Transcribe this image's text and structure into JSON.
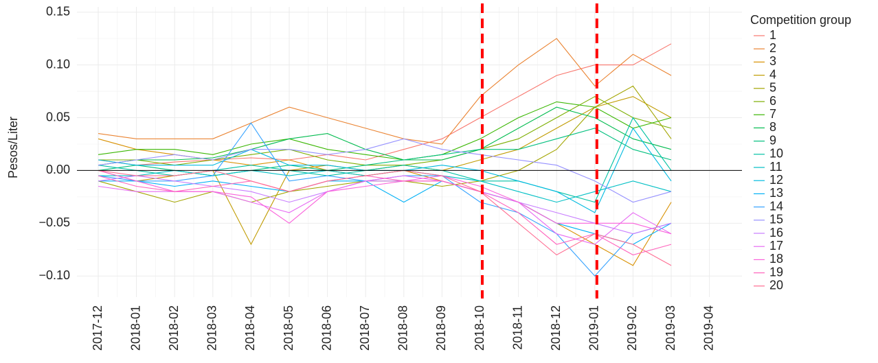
{
  "chart_data": {
    "type": "line",
    "y_label": "Pesos/Liter",
    "legend_title": "Competition group",
    "legend_position": "right",
    "grid": true,
    "zero_line": true,
    "x": [
      "2017-12",
      "2018-01",
      "2018-02",
      "2018-03",
      "2018-04",
      "2018-05",
      "2018-06",
      "2018-07",
      "2018-08",
      "2018-09",
      "2018-10",
      "2018-11",
      "2018-12",
      "2019-01",
      "2019-02",
      "2019-03"
    ],
    "xticks": [
      "2017-12",
      "2018-01",
      "2018-02",
      "2018-03",
      "2018-04",
      "2018-05",
      "2018-06",
      "2018-07",
      "2018-08",
      "2018-09",
      "2018-10",
      "2018-11",
      "2018-12",
      "2019-01",
      "2019-02",
      "2019-03",
      "2019-04"
    ],
    "vlines": [
      "2018-10",
      "2019-01"
    ],
    "vline_color": "#ff0000",
    "ylim": [
      -0.12,
      0.155
    ],
    "yticks": [
      {
        "value": -0.1,
        "label": "−0.10"
      },
      {
        "value": -0.05,
        "label": "−0.05"
      },
      {
        "value": 0,
        "label": "0.00"
      },
      {
        "value": 0.05,
        "label": "0.05"
      },
      {
        "value": 0.1,
        "label": "0.10"
      },
      {
        "value": 0.15,
        "label": "0.15"
      }
    ],
    "series": [
      {
        "name": "1",
        "color": "#F8766D",
        "values": [
          0.01,
          0.005,
          0.008,
          0.01,
          0.012,
          0.01,
          0.015,
          0.01,
          0.02,
          0.03,
          0.05,
          0.07,
          0.09,
          0.1,
          0.1,
          0.12
        ]
      },
      {
        "name": "2",
        "color": "#EA8331",
        "values": [
          0.035,
          0.03,
          0.03,
          0.03,
          0.045,
          0.06,
          0.05,
          0.04,
          0.03,
          0.025,
          0.07,
          0.1,
          0.125,
          0.08,
          0.11,
          0.09
        ]
      },
      {
        "name": "3",
        "color": "#D89000",
        "values": [
          0.03,
          0.02,
          0.015,
          0.01,
          0.005,
          0.01,
          0,
          -0.005,
          0,
          -0.01,
          -0.02,
          -0.03,
          -0.05,
          -0.07,
          -0.09,
          -0.03
        ]
      },
      {
        "name": "4",
        "color": "#C09B00",
        "values": [
          0,
          -0.01,
          -0.005,
          0,
          -0.07,
          0,
          0.005,
          0,
          0.005,
          0,
          0.01,
          0.02,
          0.04,
          0.06,
          0.07,
          0.05
        ]
      },
      {
        "name": "5",
        "color": "#A3A500",
        "values": [
          -0.01,
          -0.02,
          -0.03,
          -0.02,
          -0.03,
          -0.02,
          -0.015,
          -0.01,
          -0.01,
          -0.015,
          -0.01,
          0,
          0.02,
          0.06,
          0.08,
          0.03
        ]
      },
      {
        "name": "6",
        "color": "#7CAE00",
        "values": [
          0.01,
          0.01,
          0.005,
          0.01,
          0.015,
          0.02,
          0.01,
          0.005,
          0.005,
          0.01,
          0.02,
          0.03,
          0.05,
          0.07,
          0.05,
          0.04
        ]
      },
      {
        "name": "7",
        "color": "#39B600",
        "values": [
          0.015,
          0.02,
          0.02,
          0.015,
          0.025,
          0.03,
          0.02,
          0.015,
          0.01,
          0.015,
          0.03,
          0.05,
          0.065,
          0.06,
          0.04,
          0.05
        ]
      },
      {
        "name": "8",
        "color": "#00BB4E",
        "values": [
          0.005,
          0.01,
          0.01,
          0.012,
          0.02,
          0.03,
          0.035,
          0.02,
          0.01,
          0.01,
          0.02,
          0.04,
          0.06,
          0.05,
          0.03,
          0.02
        ]
      },
      {
        "name": "9",
        "color": "#00BF7D",
        "values": [
          0,
          0.005,
          0,
          -0.005,
          0,
          0.005,
          0,
          0.005,
          0.01,
          0.015,
          0.02,
          0.02,
          0.03,
          0.04,
          0.02,
          0.01
        ]
      },
      {
        "name": "10",
        "color": "#00C1A3",
        "values": [
          0.005,
          0,
          -0.005,
          0,
          0.005,
          0,
          -0.005,
          0,
          0.005,
          0,
          -0.01,
          -0.01,
          -0.02,
          -0.03,
          0.05,
          0
        ]
      },
      {
        "name": "11",
        "color": "#00BFC4",
        "values": [
          -0.005,
          -0.005,
          0,
          -0.005,
          0,
          -0.005,
          0,
          -0.005,
          0,
          -0.005,
          -0.01,
          -0.02,
          -0.03,
          -0.02,
          -0.01,
          -0.02
        ]
      },
      {
        "name": "12",
        "color": "#00BAE0",
        "values": [
          0.01,
          0.005,
          0.005,
          0.005,
          0.02,
          0.005,
          0.005,
          0,
          0,
          0.005,
          0,
          -0.01,
          -0.02,
          -0.04,
          0.04,
          -0.01
        ]
      },
      {
        "name": "13",
        "color": "#00B0F6",
        "values": [
          -0.01,
          -0.01,
          -0.015,
          -0.01,
          -0.015,
          -0.02,
          -0.01,
          -0.01,
          -0.03,
          -0.01,
          -0.02,
          -0.03,
          -0.05,
          -0.06,
          -0.07,
          -0.05
        ]
      },
      {
        "name": "14",
        "color": "#35A2FF",
        "values": [
          -0.005,
          -0.01,
          -0.01,
          -0.005,
          0.045,
          -0.01,
          -0.005,
          -0.01,
          -0.005,
          -0.005,
          -0.03,
          -0.04,
          -0.06,
          -0.1,
          -0.06,
          -0.05
        ]
      },
      {
        "name": "15",
        "color": "#9590FF",
        "values": [
          0.005,
          0.01,
          0.015,
          0.01,
          0.02,
          0.02,
          0.015,
          0.02,
          0.03,
          0.02,
          0.015,
          0.01,
          0.005,
          -0.01,
          -0.03,
          -0.02
        ]
      },
      {
        "name": "16",
        "color": "#C77CFF",
        "values": [
          -0.01,
          -0.005,
          -0.01,
          -0.015,
          -0.02,
          -0.03,
          -0.02,
          -0.01,
          -0.01,
          -0.01,
          -0.02,
          -0.03,
          -0.04,
          -0.05,
          -0.06,
          -0.05
        ]
      },
      {
        "name": "17",
        "color": "#E76BF3",
        "values": [
          -0.015,
          -0.02,
          -0.02,
          -0.02,
          -0.03,
          -0.04,
          -0.02,
          -0.01,
          -0.005,
          -0.01,
          -0.02,
          -0.03,
          -0.06,
          -0.07,
          -0.04,
          -0.06
        ]
      },
      {
        "name": "18",
        "color": "#FA62DB",
        "values": [
          0,
          -0.01,
          -0.02,
          -0.02,
          -0.025,
          -0.05,
          -0.02,
          -0.015,
          -0.01,
          -0.005,
          -0.015,
          -0.03,
          -0.05,
          -0.05,
          -0.05,
          -0.06
        ]
      },
      {
        "name": "19",
        "color": "#FF62BC",
        "values": [
          -0.005,
          -0.015,
          -0.02,
          -0.015,
          -0.01,
          -0.02,
          -0.01,
          -0.005,
          -0.01,
          -0.01,
          -0.02,
          -0.04,
          -0.07,
          -0.06,
          -0.08,
          -0.07
        ]
      },
      {
        "name": "20",
        "color": "#FF6C91",
        "values": [
          0,
          -0.005,
          -0.005,
          0,
          -0.01,
          -0.02,
          -0.01,
          -0.005,
          0,
          -0.005,
          -0.02,
          -0.05,
          -0.08,
          -0.06,
          -0.07,
          -0.09
        ]
      }
    ]
  }
}
